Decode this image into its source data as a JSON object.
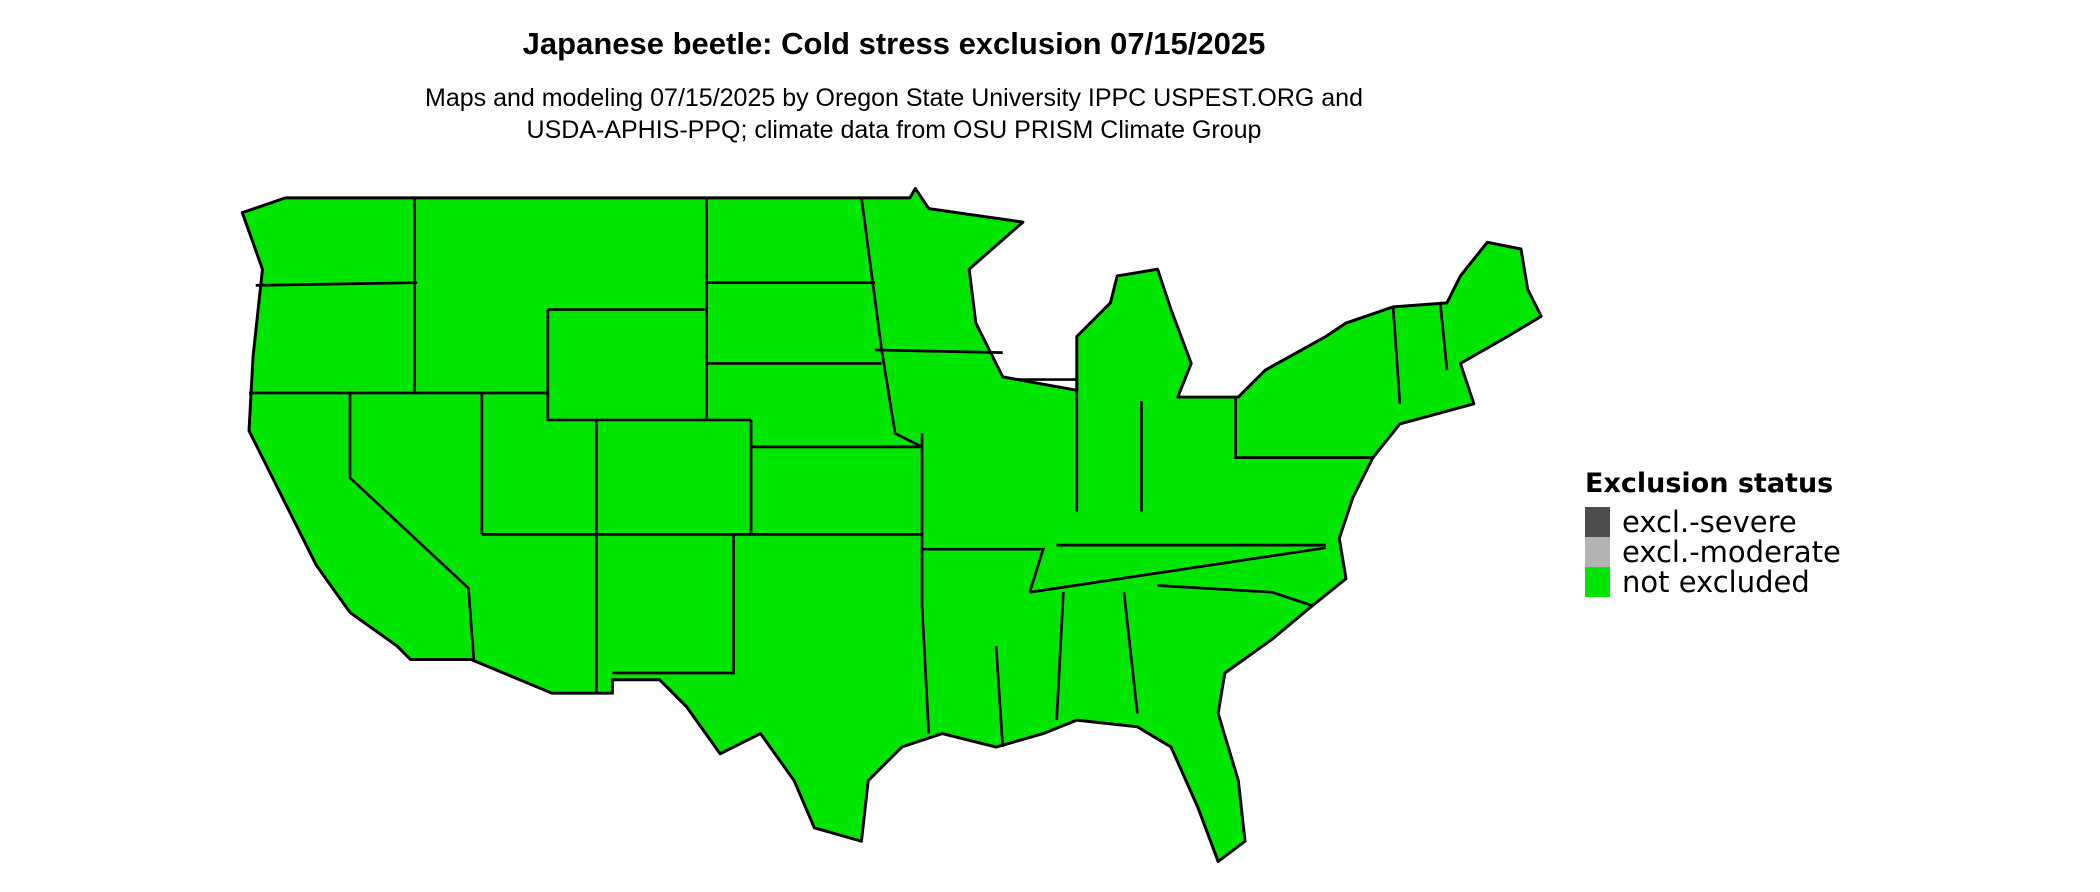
{
  "title": "Japanese beetle: Cold stress exclusion 07/15/2025",
  "subtitle_lines": [
    "Maps and modeling 07/15/2025 by Oregon State University IPPC USPEST.ORG and",
    "USDA-APHIS-PPQ; climate data from OSU PRISM Climate Group"
  ],
  "map": {
    "region": "Contiguous United States",
    "fill_status": "not excluded",
    "border_color": "#000000"
  },
  "legend": {
    "title": "Exclusion status",
    "items": [
      {
        "label": "excl.-severe",
        "color": "#4d4d4d"
      },
      {
        "label": "excl.-moderate",
        "color": "#b3b3b3"
      },
      {
        "label": "not excluded",
        "color": "#00e600"
      }
    ]
  }
}
